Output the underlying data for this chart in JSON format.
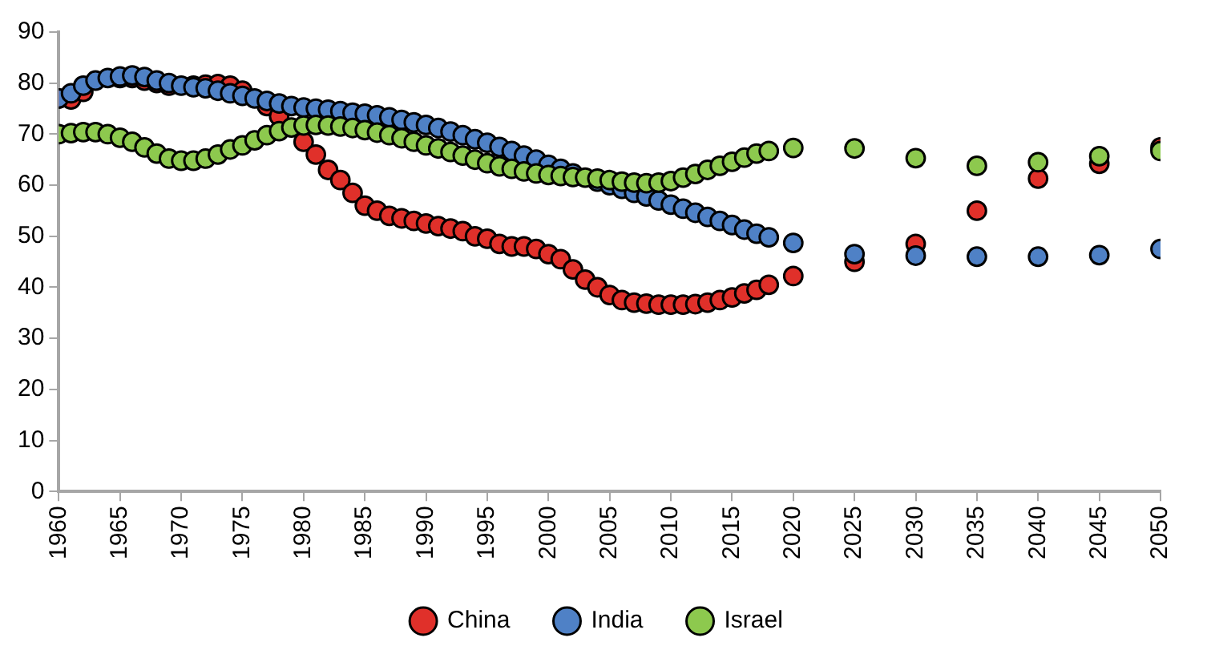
{
  "chart_data": {
    "type": "scatter",
    "marker": "circle",
    "grid": false,
    "legend": "bottom",
    "x": [
      1960,
      1961,
      1962,
      1963,
      1964,
      1965,
      1966,
      1967,
      1968,
      1969,
      1970,
      1971,
      1972,
      1973,
      1974,
      1975,
      1976,
      1977,
      1978,
      1979,
      1980,
      1981,
      1982,
      1983,
      1984,
      1985,
      1986,
      1987,
      1988,
      1989,
      1990,
      1991,
      1992,
      1993,
      1994,
      1995,
      1996,
      1997,
      1998,
      1999,
      2000,
      2001,
      2002,
      2003,
      2004,
      2005,
      2006,
      2007,
      2008,
      2009,
      2010,
      2011,
      2012,
      2013,
      2014,
      2015,
      2016,
      2017,
      2018,
      2020,
      2025,
      2030,
      2035,
      2040,
      2045,
      2050
    ],
    "xlim": [
      1960,
      2050
    ],
    "xticks": [
      1960,
      1965,
      1970,
      1975,
      1980,
      1985,
      1990,
      1995,
      2000,
      2005,
      2010,
      2015,
      2020,
      2025,
      2030,
      2035,
      2040,
      2045,
      2050
    ],
    "ylim": [
      0,
      90
    ],
    "yticks": [
      0,
      10,
      20,
      30,
      40,
      50,
      60,
      70,
      80,
      90
    ],
    "series": [
      {
        "name": "China",
        "color": "#e0302a",
        "values": [
          77,
          76.8,
          78.3,
          null,
          null,
          81,
          81,
          80.5,
          80,
          79.5,
          null,
          79.5,
          79.7,
          79.8,
          79.5,
          78.5,
          null,
          75.5,
          73.5,
          null,
          68.5,
          66,
          63,
          61,
          58.5,
          56,
          55,
          54,
          53.5,
          53,
          52.5,
          52,
          51.5,
          51,
          50,
          49.5,
          48.5,
          48,
          48,
          47.5,
          46.5,
          45.5,
          43.5,
          41.5,
          40,
          38.5,
          37.5,
          37,
          36.8,
          36.6,
          36.6,
          36.6,
          36.7,
          37,
          37.5,
          38,
          38.8,
          39.5,
          40.5,
          42.2,
          45,
          48.5,
          55,
          61.3,
          64.2,
          67.4
        ]
      },
      {
        "name": "India",
        "color": "#4f81c6",
        "values": [
          77,
          78,
          79.5,
          80.5,
          81,
          81.3,
          81.5,
          81.2,
          80.5,
          80,
          79.5,
          79.2,
          79,
          78.5,
          78,
          77.5,
          77,
          76.5,
          76,
          75.5,
          75.2,
          75,
          74.8,
          74.5,
          74.2,
          74,
          73.7,
          73.3,
          72.8,
          72.3,
          71.8,
          71.2,
          70.5,
          69.8,
          69,
          68.3,
          67.5,
          66.7,
          65.8,
          65,
          64,
          63.2,
          62.3,
          null,
          60.7,
          60,
          59.3,
          58.5,
          57.8,
          57,
          56.2,
          55.4,
          54.6,
          53.8,
          53,
          52.2,
          51.3,
          50.5,
          49.8,
          48.7,
          46.5,
          46.2,
          46,
          46,
          46.3,
          47.5
        ]
      },
      {
        "name": "Israel",
        "color": "#8dc94e",
        "values": [
          70,
          70.2,
          70.4,
          70.4,
          70,
          69.3,
          68.5,
          67.4,
          66.2,
          65.2,
          64.8,
          64.8,
          65.2,
          66,
          67,
          67.8,
          68.8,
          69.8,
          70.6,
          71.3,
          71.7,
          71.8,
          71.7,
          71.5,
          71.2,
          70.8,
          70.3,
          69.8,
          69.2,
          68.5,
          67.8,
          67.2,
          66.5,
          65.8,
          65,
          64.3,
          63.7,
          63.2,
          62.7,
          62.3,
          62,
          61.8,
          61.6,
          61.5,
          61.3,
          61,
          60.7,
          60.5,
          60.4,
          60.5,
          60.8,
          61.5,
          62.2,
          63,
          63.8,
          64.6,
          65.4,
          66.2,
          66.7,
          67.3,
          67.2,
          65.3,
          63.8,
          64.5,
          65.7,
          66.7
        ]
      }
    ]
  }
}
